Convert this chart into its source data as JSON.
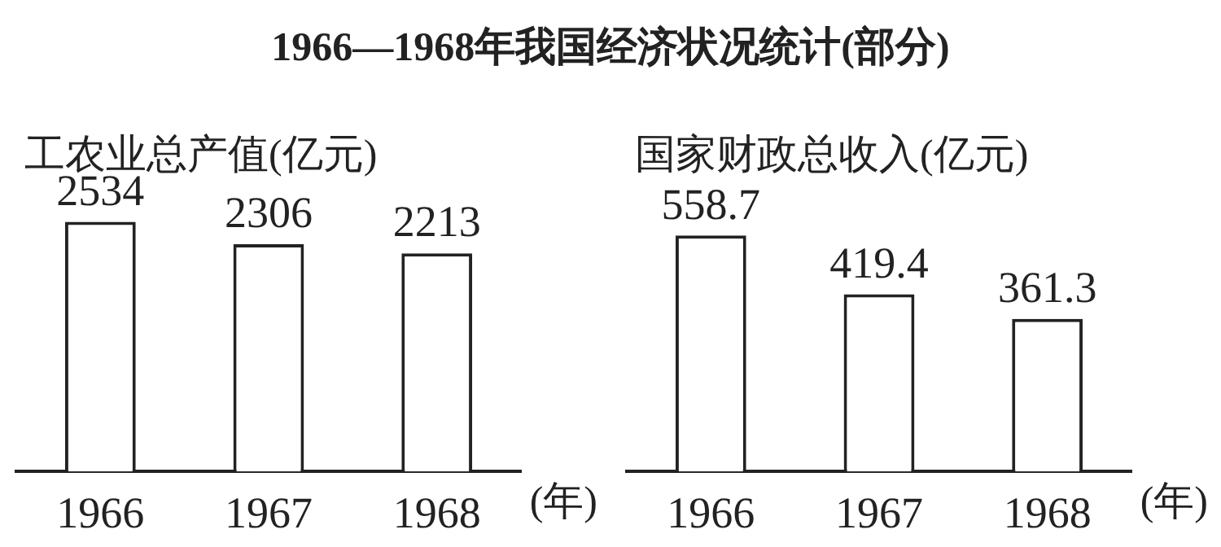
{
  "chart_data": [
    {
      "type": "bar",
      "title": "1966—1968年我国经济状况统计(部分)",
      "ylabel": "工农业总产值(亿元)",
      "xlabel": "(年)",
      "categories": [
        "1966",
        "1967",
        "1968"
      ],
      "values": [
        2534,
        2306,
        2213
      ],
      "color": "#ffffff",
      "data_labels": true,
      "grid": false,
      "legend": false
    },
    {
      "type": "bar",
      "ylabel": "国家财政总收入(亿元)",
      "xlabel": "(年)",
      "categories": [
        "1966",
        "1967",
        "1968"
      ],
      "values": [
        558.7,
        419.4,
        361.3
      ],
      "color": "#ffffff",
      "data_labels": true,
      "grid": false,
      "legend": false
    }
  ]
}
